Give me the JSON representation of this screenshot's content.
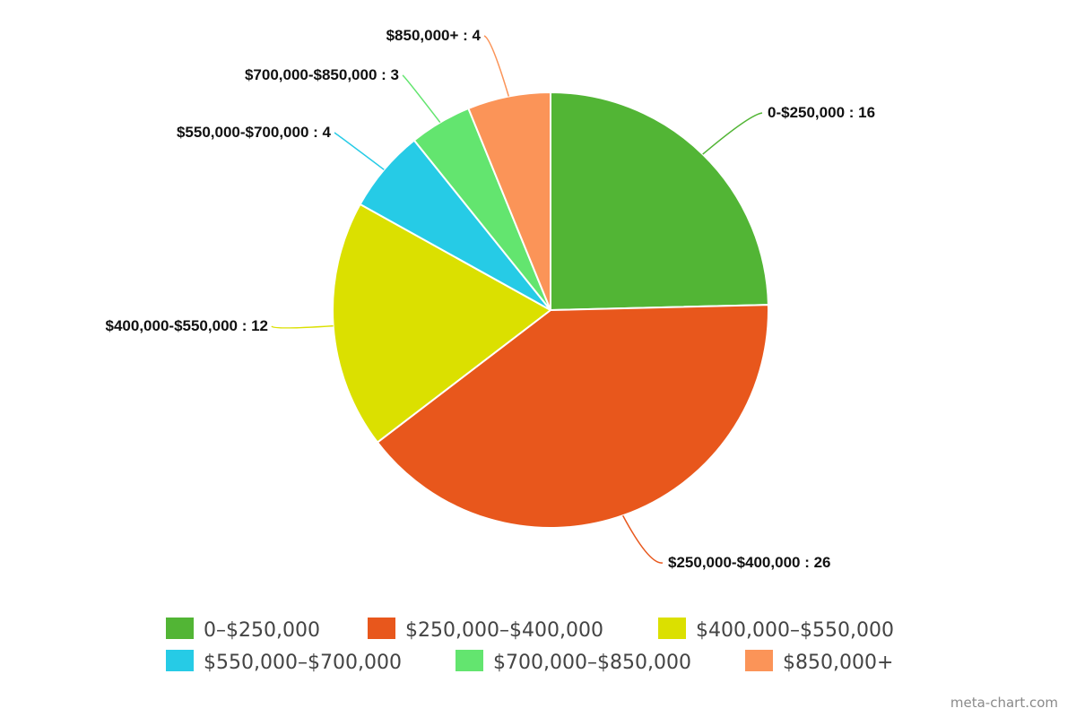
{
  "chart_data": {
    "type": "pie",
    "title": "",
    "categories": [
      "0-$250,000",
      "$250,000-$400,000",
      "$400,000-$550,000",
      "$550,000-$700,000",
      "$700,000-$850,000",
      "$850,000+"
    ],
    "values": [
      16,
      26,
      12,
      4,
      3,
      4
    ],
    "colors": [
      "#52b535",
      "#e8571c",
      "#dbe000",
      "#26cbe6",
      "#63e56f",
      "#fb9458"
    ],
    "data_labels": [
      "0-$250,000 : 16",
      "$250,000-$400,000 : 26",
      "$400,000-$550,000 : 12",
      "$550,000-$700,000 : 4",
      "$700,000-$850,000 : 3",
      "$850,000+ : 4"
    ],
    "legend": {
      "position": "bottom",
      "entries": [
        "0–$250,000",
        "$250,000–$400,000",
        "$400,000–$550,000",
        "$550,000–$700,000",
        "$700,000–$850,000",
        "$850,000+"
      ]
    },
    "start_direction": "top",
    "direction": "clockwise"
  },
  "credit": "meta-chart.com"
}
